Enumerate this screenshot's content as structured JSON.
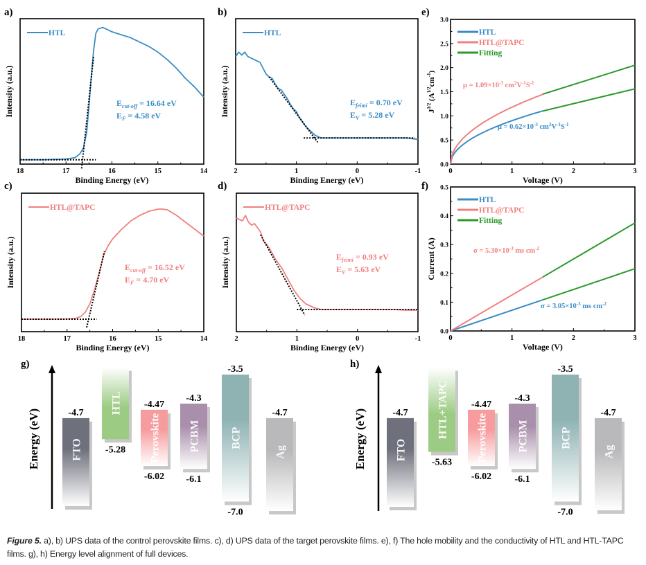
{
  "colors": {
    "htl": "#3a8cc6",
    "tapc": "#f07f7f",
    "fit": "#2a9a2a",
    "axis": "#000000"
  },
  "chart_data": [
    {
      "id": "a",
      "panel_label": "a)",
      "type": "line",
      "xlabel": "Binding Energy (eV)",
      "ylabel": "Intensity (a.u.)",
      "xlim": [
        18,
        14
      ],
      "ylim": [
        0,
        1
      ],
      "xticks": [
        18,
        17,
        16,
        15,
        14
      ],
      "yticks": [],
      "legend": [
        {
          "label": "HTL",
          "color": "#3a8cc6"
        }
      ],
      "legend_placement": "top-left",
      "series": [
        {
          "name": "HTL",
          "color": "#3a8cc6",
          "x": [
            18,
            17.5,
            17.0,
            16.8,
            16.7,
            16.62,
            16.55,
            16.5,
            16.45,
            16.4,
            16.35,
            16.3,
            16.2,
            16.0,
            15.8,
            15.6,
            15.4,
            15.2,
            15.0,
            14.8,
            14.6,
            14.4,
            14.2,
            14.0
          ],
          "y": [
            0.03,
            0.03,
            0.035,
            0.045,
            0.07,
            0.11,
            0.22,
            0.4,
            0.6,
            0.78,
            0.9,
            0.93,
            0.94,
            0.91,
            0.89,
            0.87,
            0.84,
            0.81,
            0.77,
            0.72,
            0.66,
            0.59,
            0.53,
            0.46
          ]
        }
      ],
      "fit_lines": [
        {
          "x": [
            18.0,
            16.35
          ],
          "y": [
            0.03,
            0.03
          ]
        },
        {
          "x": [
            16.66,
            16.4
          ],
          "y": [
            -0.03,
            0.74
          ]
        }
      ],
      "annotations": [
        {
          "main": "E",
          "sub": "cut-off",
          "rest": " = 16.64 eV",
          "color": "#3a8cc6"
        },
        {
          "main": "E",
          "sub": "F",
          "rest": " = 4.58 eV",
          "color": "#3a8cc6"
        }
      ]
    },
    {
      "id": "b",
      "panel_label": "b)",
      "type": "line",
      "xlabel": "Binding Energy (eV)",
      "ylabel": "Intensity (a.u.)",
      "xlim": [
        2,
        -1
      ],
      "ylim": [
        0,
        1
      ],
      "xticks": [
        2,
        1,
        0,
        -1
      ],
      "yticks": [],
      "legend": [
        {
          "label": "HTL",
          "color": "#3a8cc6"
        }
      ],
      "legend_placement": "top-left",
      "series": [
        {
          "name": "HTL",
          "color": "#3a8cc6",
          "x": [
            2.0,
            1.95,
            1.9,
            1.85,
            1.8,
            1.75,
            1.7,
            1.65,
            1.6,
            1.55,
            1.5,
            1.45,
            1.4,
            1.35,
            1.3,
            1.25,
            1.2,
            1.15,
            1.1,
            1.05,
            1.0,
            0.95,
            0.9,
            0.85,
            0.8,
            0.75,
            0.7,
            0.65,
            0.6,
            0.5,
            0.4,
            0.3,
            0.2,
            0.1,
            0.0,
            -0.2,
            -0.4,
            -0.6,
            -0.8,
            -1.0
          ],
          "y": [
            0.74,
            0.77,
            0.75,
            0.77,
            0.74,
            0.73,
            0.72,
            0.71,
            0.7,
            0.66,
            0.62,
            0.6,
            0.59,
            0.55,
            0.52,
            0.51,
            0.48,
            0.45,
            0.41,
            0.38,
            0.36,
            0.32,
            0.29,
            0.26,
            0.24,
            0.22,
            0.2,
            0.19,
            0.18,
            0.18,
            0.18,
            0.18,
            0.18,
            0.18,
            0.18,
            0.18,
            0.18,
            0.18,
            0.18,
            0.17
          ]
        }
      ],
      "fit_lines": [
        {
          "x": [
            0.88,
            -0.95
          ],
          "y": [
            0.18,
            0.18
          ]
        },
        {
          "x": [
            1.45,
            0.65
          ],
          "y": [
            0.6,
            0.15
          ]
        }
      ],
      "annotations": [
        {
          "main": "E",
          "sub": "feimi",
          "rest": " = 0.70 eV",
          "color": "#3a8cc6"
        },
        {
          "main": "E",
          "sub": "V",
          "rest": " = 5.28 eV",
          "color": "#3a8cc6"
        }
      ]
    },
    {
      "id": "c",
      "panel_label": "c)",
      "type": "line",
      "xlabel": "Binding Energy (eV)",
      "ylabel": "Intensity (a.u.)",
      "xlim": [
        18,
        14
      ],
      "ylim": [
        0,
        1
      ],
      "xticks": [
        18,
        17,
        16,
        15,
        14
      ],
      "yticks": [],
      "legend": [
        {
          "label": "HTL@TAPC",
          "color": "#f07f7f"
        }
      ],
      "legend_placement": "top-left",
      "series": [
        {
          "name": "HTL@TAPC",
          "color": "#f07f7f",
          "x": [
            18,
            17.5,
            17.0,
            16.8,
            16.7,
            16.6,
            16.5,
            16.4,
            16.3,
            16.2,
            16.1,
            16.0,
            15.8,
            15.6,
            15.4,
            15.2,
            15.0,
            14.9,
            14.8,
            14.6,
            14.4,
            14.2,
            14.0
          ],
          "y": [
            0.09,
            0.09,
            0.092,
            0.097,
            0.11,
            0.14,
            0.2,
            0.3,
            0.42,
            0.55,
            0.62,
            0.67,
            0.74,
            0.8,
            0.84,
            0.87,
            0.885,
            0.885,
            0.88,
            0.84,
            0.79,
            0.74,
            0.69
          ]
        }
      ],
      "fit_lines": [
        {
          "x": [
            18.0,
            16.35
          ],
          "y": [
            0.09,
            0.09
          ]
        },
        {
          "x": [
            16.57,
            16.18
          ],
          "y": [
            0.03,
            0.58
          ]
        }
      ],
      "annotations": [
        {
          "main": "E",
          "sub": "cut-off",
          "rest": " = 16.52 eV",
          "color": "#f07f7f"
        },
        {
          "main": "E",
          "sub": "F",
          "rest": " = 4.70 eV",
          "color": "#f07f7f"
        }
      ]
    },
    {
      "id": "d",
      "panel_label": "d)",
      "type": "line",
      "xlabel": "Binding Energy (eV)",
      "ylabel": "Intensity (a.u.)",
      "xlim": [
        2,
        -1
      ],
      "ylim": [
        0,
        1
      ],
      "xticks": [
        2,
        1,
        0,
        -1
      ],
      "yticks": [],
      "legend": [
        {
          "label": "HTL@TAPC",
          "color": "#f07f7f"
        }
      ],
      "legend_placement": "top-left",
      "series": [
        {
          "name": "HTL@TAPC",
          "color": "#f07f7f",
          "x": [
            2.0,
            1.95,
            1.9,
            1.85,
            1.8,
            1.75,
            1.7,
            1.65,
            1.6,
            1.55,
            1.5,
            1.45,
            1.4,
            1.35,
            1.3,
            1.25,
            1.2,
            1.15,
            1.1,
            1.05,
            1.0,
            0.95,
            0.9,
            0.85,
            0.8,
            0.75,
            0.7,
            0.65,
            0.6,
            0.5,
            0.4,
            0.2,
            0.0,
            -0.2,
            -0.4,
            -0.6,
            -0.8,
            -1.0
          ],
          "y": [
            0.82,
            0.81,
            0.8,
            0.84,
            0.79,
            0.77,
            0.78,
            0.75,
            0.72,
            0.65,
            0.63,
            0.6,
            0.56,
            0.52,
            0.49,
            0.46,
            0.42,
            0.38,
            0.34,
            0.3,
            0.27,
            0.24,
            0.22,
            0.2,
            0.19,
            0.18,
            0.17,
            0.165,
            0.16,
            0.16,
            0.16,
            0.16,
            0.16,
            0.16,
            0.16,
            0.16,
            0.155,
            0.155
          ]
        }
      ],
      "fit_lines": [
        {
          "x": [
            1.0,
            -1.0
          ],
          "y": [
            0.16,
            0.16
          ]
        },
        {
          "x": [
            1.6,
            0.87
          ],
          "y": [
            0.7,
            0.12
          ]
        }
      ],
      "annotations": [
        {
          "main": "E",
          "sub": "feimi",
          "rest": " = 0.93 eV",
          "color": "#f07f7f"
        },
        {
          "main": "E",
          "sub": "V",
          "rest": " = 5.63 eV",
          "color": "#f07f7f"
        }
      ]
    },
    {
      "id": "e",
      "panel_label": "e)",
      "type": "line",
      "xlabel": "Voltage (V)",
      "ylabel": "J^1/2 (A^1/2 cm^-1)",
      "xlim": [
        0,
        3
      ],
      "ylim": [
        0,
        3.0
      ],
      "xticks": [
        0,
        1,
        2,
        3
      ],
      "yticks": [
        0.0,
        0.5,
        1.0,
        1.5,
        2.0,
        2.5,
        3.0
      ],
      "ytick_labels": [
        "0.0",
        "0.5",
        "1.0",
        "1.5",
        "2.0",
        "2.5",
        "3.0"
      ],
      "legend": [
        {
          "label": "HTL",
          "color": "#3a8cc6"
        },
        {
          "label": "HTL@TAPC",
          "color": "#f07f7f"
        },
        {
          "label": "Fitting",
          "color": "#2a9a2a"
        }
      ],
      "legend_placement": "top-left",
      "series": [
        {
          "name": "HTL",
          "color": "#3a8cc6",
          "model": "sqrt",
          "coef": 0.9,
          "x_range": [
            0,
            1.5
          ]
        },
        {
          "name": "HTL@TAPC",
          "color": "#f07f7f",
          "model": "sqrt",
          "coef": 1.18,
          "x_range": [
            0,
            1.5
          ]
        },
        {
          "name": "Fitting (HTL)",
          "color": "#2a9a2a",
          "x": [
            1.5,
            3.0
          ],
          "y": [
            1.1,
            1.56
          ]
        },
        {
          "name": "Fitting (HTL@TAPC)",
          "color": "#2a9a2a",
          "x": [
            1.5,
            3.0
          ],
          "y": [
            1.45,
            2.05
          ]
        }
      ],
      "annotations": [
        {
          "text": "μ = 1.09×10",
          "sup1": "-3",
          "mid": " cm",
          "sup2": "2",
          "mid2": "V",
          "sup3": "-1",
          "mid3": "S",
          "sup4": "-1",
          "color": "#f07f7f"
        },
        {
          "text": "μ = 0.62×10",
          "sup1": "-3",
          "mid": " cm",
          "sup2": "2",
          "mid2": "V",
          "sup3": "-1",
          "mid3": "S",
          "sup4": "-1",
          "color": "#3a8cc6"
        }
      ]
    },
    {
      "id": "f",
      "panel_label": "f)",
      "type": "line",
      "xlabel": "Voltage (V)",
      "ylabel": "Current (A)",
      "xlim": [
        0,
        3
      ],
      "ylim": [
        0,
        0.5
      ],
      "xticks": [
        0,
        1,
        2,
        3
      ],
      "yticks": [
        0.0,
        0.1,
        0.2,
        0.3,
        0.4,
        0.5
      ],
      "ytick_labels": [
        "0.0",
        "0.1",
        "0.2",
        "0.3",
        "0.4",
        "0.5"
      ],
      "legend": [
        {
          "label": "HTL",
          "color": "#3a8cc6"
        },
        {
          "label": "HTL@TAPC",
          "color": "#f07f7f"
        },
        {
          "label": "Fitting",
          "color": "#2a9a2a"
        }
      ],
      "legend_placement": "top-left",
      "series": [
        {
          "name": "HTL",
          "color": "#3a8cc6",
          "x": [
            0,
            1.5
          ],
          "y": [
            0,
            0.108
          ]
        },
        {
          "name": "HTL@TAPC",
          "color": "#f07f7f",
          "x": [
            0,
            1.5
          ],
          "y": [
            0,
            0.187
          ]
        },
        {
          "name": "Fitting (HTL)",
          "color": "#2a9a2a",
          "x": [
            1.5,
            3.0
          ],
          "y": [
            0.108,
            0.216
          ]
        },
        {
          "name": "Fitting (HTL@TAPC)",
          "color": "#2a9a2a",
          "x": [
            1.5,
            3.0
          ],
          "y": [
            0.187,
            0.375
          ]
        }
      ],
      "annotations": [
        {
          "text": "σ = 5.30×10",
          "sup1": "-3",
          "mid": " ms cm",
          "sup2": "-2",
          "color": "#f07f7f"
        },
        {
          "text": "σ = 3.05×10",
          "sup1": "-3",
          "mid": " ms cm",
          "sup2": "-2",
          "color": "#3a8cc6"
        }
      ]
    },
    {
      "id": "g",
      "panel_label": "g)",
      "type": "bar",
      "ylabel": "Energy (eV)",
      "layers": [
        {
          "name": "FTO",
          "top": -4.7,
          "bottom": null,
          "top_label": "-4.7",
          "bottom_label": "",
          "color": "#6e707c"
        },
        {
          "name": "HTL",
          "top": -3.3,
          "bottom": -5.28,
          "top_label": "",
          "bottom_label": "-5.28",
          "color": "#9ccc84"
        },
        {
          "name": "Perovskite",
          "top": -4.47,
          "bottom": -6.02,
          "top_label": "-4.47",
          "bottom_label": "-6.02",
          "color": "#f79c9e"
        },
        {
          "name": "PCBM",
          "top": -4.3,
          "bottom": -6.1,
          "top_label": "-4.3",
          "bottom_label": "-6.1",
          "color": "#a98fab"
        },
        {
          "name": "BCP",
          "top": -3.5,
          "bottom": -7.0,
          "top_label": "-3.5",
          "bottom_label": "-7.0",
          "color": "#8fb2b3"
        },
        {
          "name": "Ag",
          "top": -4.7,
          "bottom": null,
          "top_label": "-4.7",
          "bottom_label": "",
          "color": "#b9b9bb"
        }
      ]
    },
    {
      "id": "h",
      "panel_label": "h)",
      "type": "bar",
      "ylabel": "Energy (eV)",
      "layers": [
        {
          "name": "FTO",
          "top": -4.7,
          "bottom": null,
          "top_label": "-4.7",
          "bottom_label": "",
          "color": "#6e707c"
        },
        {
          "name": "HTL+TAPC",
          "top": -3.3,
          "bottom": -5.63,
          "top_label": "",
          "bottom_label": "-5.63",
          "color": "#9ccc84"
        },
        {
          "name": "Perovskite",
          "top": -4.47,
          "bottom": -6.02,
          "top_label": "-4.47",
          "bottom_label": "-6.02",
          "color": "#f79c9e"
        },
        {
          "name": "PCBM",
          "top": -4.3,
          "bottom": -6.1,
          "top_label": "-4.3",
          "bottom_label": "-6.1",
          "color": "#a98fab"
        },
        {
          "name": "BCP",
          "top": -3.5,
          "bottom": -7.0,
          "top_label": "-3.5",
          "bottom_label": "-7.0",
          "color": "#8fb2b3"
        },
        {
          "name": "Ag",
          "top": -4.7,
          "bottom": null,
          "top_label": "-4.7",
          "bottom_label": "",
          "color": "#b9b9bb"
        }
      ]
    }
  ],
  "caption": {
    "label": "Figure 5.",
    "text": " a), b) UPS data of the control perovskite films. c), d) UPS data of the target perovskite films. e), f) The hole mobility and the conductivity of HTL and HTL-TAPC films. g), h) Energy level alignment of full devices."
  }
}
